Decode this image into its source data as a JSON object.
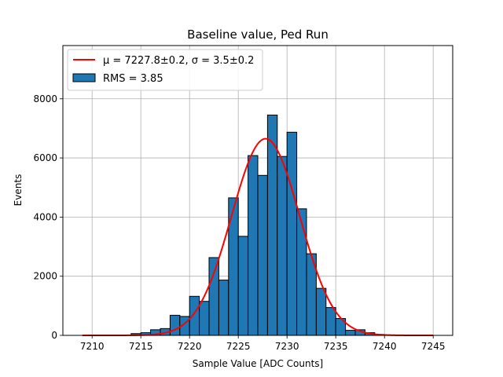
{
  "chart_data": {
    "type": "bar",
    "title": "Baseline value, Ped Run",
    "xlabel": "Sample Value [ADC Counts]",
    "ylabel": "Events",
    "xlim": [
      7207,
      7247
    ],
    "ylim": [
      0,
      9800
    ],
    "xticks": [
      7210,
      7215,
      7220,
      7225,
      7230,
      7235,
      7240,
      7245
    ],
    "yticks": [
      0,
      2000,
      4000,
      6000,
      8000
    ],
    "grid": true,
    "legend_position": "top-left",
    "bins": [
      {
        "x0": 7214,
        "x1": 7215,
        "count": 60
      },
      {
        "x0": 7215,
        "x1": 7216,
        "count": 90
      },
      {
        "x0": 7216,
        "x1": 7217,
        "count": 190
      },
      {
        "x0": 7217,
        "x1": 7218,
        "count": 230
      },
      {
        "x0": 7218,
        "x1": 7219,
        "count": 680
      },
      {
        "x0": 7219,
        "x1": 7220,
        "count": 640
      },
      {
        "x0": 7220,
        "x1": 7221,
        "count": 1320
      },
      {
        "x0": 7221,
        "x1": 7222,
        "count": 1150
      },
      {
        "x0": 7222,
        "x1": 7223,
        "count": 2630
      },
      {
        "x0": 7223,
        "x1": 7224,
        "count": 1870
      },
      {
        "x0": 7224,
        "x1": 7225,
        "count": 4650
      },
      {
        "x0": 7225,
        "x1": 7226,
        "count": 3350
      },
      {
        "x0": 7226,
        "x1": 7227,
        "count": 6080
      },
      {
        "x0": 7227,
        "x1": 7228,
        "count": 5410
      },
      {
        "x0": 7228,
        "x1": 7229,
        "count": 7450
      },
      {
        "x0": 7229,
        "x1": 7230,
        "count": 6050
      },
      {
        "x0": 7230,
        "x1": 7231,
        "count": 6870
      },
      {
        "x0": 7231,
        "x1": 7232,
        "count": 4280
      },
      {
        "x0": 7232,
        "x1": 7233,
        "count": 2760
      },
      {
        "x0": 7233,
        "x1": 7234,
        "count": 1590
      },
      {
        "x0": 7234,
        "x1": 7235,
        "count": 940
      },
      {
        "x0": 7235,
        "x1": 7236,
        "count": 570
      },
      {
        "x0": 7236,
        "x1": 7237,
        "count": 170
      },
      {
        "x0": 7237,
        "x1": 7238,
        "count": 190
      },
      {
        "x0": 7238,
        "x1": 7239,
        "count": 90
      },
      {
        "x0": 7239,
        "x1": 7240,
        "count": 30
      }
    ],
    "fit": {
      "mu": 7227.8,
      "sigma": 3.5,
      "amplitude": 6650,
      "x_range": [
        7209,
        7245
      ],
      "label_text": "μ = 7227.8±0.2, σ = 3.5±0.2",
      "color": "#ff0000"
    },
    "hist_label": "RMS = 3.85",
    "bar_color": "#1f77b4",
    "bar_edge_color": "#000000"
  }
}
